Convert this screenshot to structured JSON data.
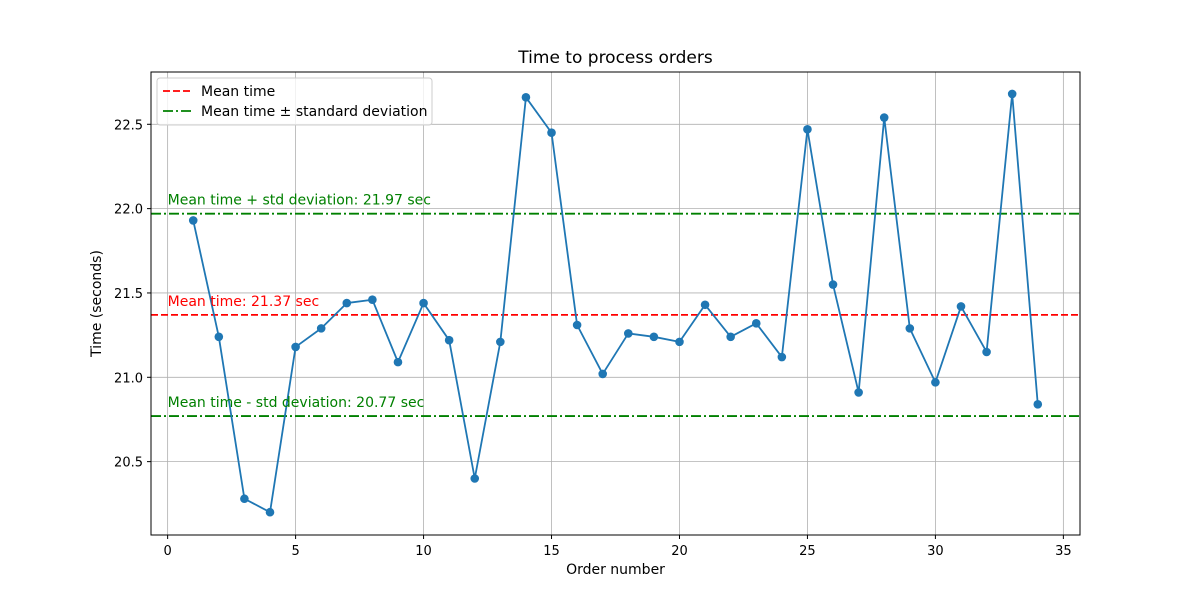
{
  "chart_data": {
    "type": "line",
    "title": "Time to process orders",
    "xlabel": "Order number",
    "ylabel": "Time (seconds)",
    "xlim": [
      -0.65,
      35.65
    ],
    "ylim": [
      20.065,
      22.81
    ],
    "xticks": [
      0,
      5,
      10,
      15,
      20,
      25,
      30,
      35
    ],
    "yticks": [
      20.5,
      21.0,
      21.5,
      22.0,
      22.5
    ],
    "xtick_labels": [
      "0",
      "5",
      "10",
      "15",
      "20",
      "25",
      "30",
      "35"
    ],
    "ytick_labels": [
      "20.5",
      "21.0",
      "21.5",
      "22.0",
      "22.5"
    ],
    "grid": true,
    "legend_position": "top-left",
    "series": [
      {
        "color": "#1f77b4",
        "marker": "circle",
        "x": [
          1,
          2,
          3,
          4,
          5,
          6,
          7,
          8,
          9,
          10,
          11,
          12,
          13,
          14,
          15,
          16,
          17,
          18,
          19,
          20,
          21,
          22,
          23,
          24,
          25,
          26,
          27,
          28,
          29,
          30,
          31,
          32,
          33,
          34
        ],
        "y": [
          21.93,
          21.24,
          20.28,
          20.2,
          21.18,
          21.29,
          21.44,
          21.46,
          21.09,
          21.44,
          21.22,
          20.4,
          21.21,
          22.66,
          22.45,
          21.31,
          21.02,
          21.26,
          21.24,
          21.21,
          21.43,
          21.24,
          21.32,
          21.12,
          22.47,
          21.55,
          20.91,
          22.54,
          21.29,
          20.97,
          21.42,
          21.15,
          22.68,
          20.84
        ]
      }
    ],
    "reference_lines": [
      {
        "name": "Mean time",
        "y": 21.37,
        "color": "#ff0000",
        "style": "dashed",
        "annotation": "Mean time: 21.37 sec"
      },
      {
        "name": "Mean time ± standard deviation",
        "y": 21.97,
        "color": "#008000",
        "style": "dashdot",
        "annotation": "Mean time + std deviation: 21.97 sec"
      },
      {
        "name": "Mean time ± standard deviation",
        "y": 20.77,
        "color": "#008000",
        "style": "dashdot",
        "annotation": "Mean time - std deviation: 20.77 sec"
      }
    ],
    "legend": [
      {
        "label": "Mean time",
        "color": "#ff0000",
        "style": "dashed"
      },
      {
        "label": "Mean time ± standard deviation",
        "color": "#008000",
        "style": "dashdot"
      }
    ]
  }
}
